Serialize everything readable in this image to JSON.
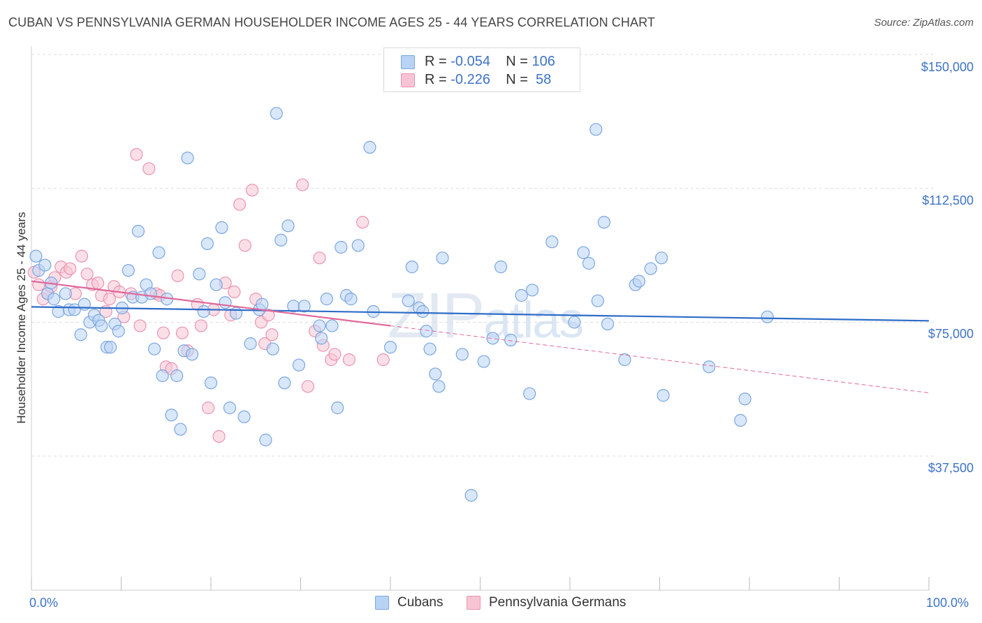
{
  "title": "CUBAN VS PENNSYLVANIA GERMAN HOUSEHOLDER INCOME AGES 25 - 44 YEARS CORRELATION CHART",
  "source": "Source: ZipAtlas.com",
  "watermark": {
    "zip": "ZIP",
    "atlas": "atlas"
  },
  "colors": {
    "cubans_fill": "#b9d3f5",
    "cubans_stroke": "#7aa6e0",
    "cubans_line": "#2d6cc8",
    "pa_fill": "#f8c4d4",
    "pa_stroke": "#eb94b0",
    "pa_line": "#e0679a",
    "tick_label": "#3d72c8",
    "grid": "#dddddd"
  },
  "legend_stats": [
    {
      "r_label": "R = ",
      "r_value": "-0.054",
      "n_label": "N = ",
      "n_value": "106"
    },
    {
      "r_label": "R = ",
      "r_value": "-0.226",
      "n_label": "N = ",
      "n_value": " 58"
    }
  ],
  "chart_data": {
    "type": "scatter",
    "title": "CUBAN VS PENNSYLVANIA GERMAN HOUSEHOLDER INCOME AGES 25 - 44 YEARS CORRELATION CHART",
    "xlabel": "",
    "ylabel": "Householder Income Ages 25 - 44 years",
    "xlim": [
      0,
      100
    ],
    "ylim": [
      15000,
      155000
    ],
    "x_tick_labels": [
      "0.0%",
      "100.0%"
    ],
    "y_ticks": [
      37500,
      75000,
      112500,
      150000
    ],
    "y_tick_labels": [
      "$37,500",
      "$75,000",
      "$112,500",
      "$150,000"
    ],
    "grid": "horizontal dashed",
    "legend_position": "top-center and bottom",
    "series": [
      {
        "name": "Cubans",
        "r": -0.054,
        "n": 106,
        "trend": {
          "x": [
            0,
            100
          ],
          "y": [
            79300,
            75400
          ]
        },
        "points": [
          [
            0.5,
            93500
          ],
          [
            0.8,
            89500
          ],
          [
            1.5,
            91000
          ],
          [
            1.8,
            83000
          ],
          [
            2.2,
            86000
          ],
          [
            2.5,
            81500
          ],
          [
            3.0,
            78000
          ],
          [
            3.8,
            83000
          ],
          [
            4.2,
            78500
          ],
          [
            4.8,
            78500
          ],
          [
            5.5,
            71500
          ],
          [
            5.9,
            80000
          ],
          [
            6.5,
            75000
          ],
          [
            7.0,
            77000
          ],
          [
            7.5,
            75500
          ],
          [
            7.8,
            74000
          ],
          [
            8.4,
            68000
          ],
          [
            8.8,
            68000
          ],
          [
            9.3,
            74500
          ],
          [
            9.7,
            72500
          ],
          [
            10.1,
            79000
          ],
          [
            10.8,
            89500
          ],
          [
            11.3,
            82000
          ],
          [
            11.9,
            100500
          ],
          [
            12.3,
            82000
          ],
          [
            12.8,
            85500
          ],
          [
            13.3,
            83000
          ],
          [
            13.7,
            67500
          ],
          [
            14.2,
            94500
          ],
          [
            14.6,
            60000
          ],
          [
            15.1,
            81500
          ],
          [
            15.6,
            49000
          ],
          [
            16.2,
            60000
          ],
          [
            16.6,
            45000
          ],
          [
            17.0,
            67000
          ],
          [
            17.4,
            121000
          ],
          [
            17.9,
            66000
          ],
          [
            18.7,
            88500
          ],
          [
            19.2,
            78000
          ],
          [
            19.6,
            97000
          ],
          [
            20.0,
            58000
          ],
          [
            20.6,
            85500
          ],
          [
            21.2,
            101500
          ],
          [
            21.6,
            80500
          ],
          [
            22.1,
            51000
          ],
          [
            22.8,
            77500
          ],
          [
            23.7,
            48500
          ],
          [
            24.4,
            69000
          ],
          [
            25.4,
            78500
          ],
          [
            25.7,
            80000
          ],
          [
            26.1,
            42000
          ],
          [
            26.9,
            67500
          ],
          [
            27.3,
            133500
          ],
          [
            27.8,
            98000
          ],
          [
            28.2,
            58000
          ],
          [
            28.6,
            102000
          ],
          [
            29.2,
            79500
          ],
          [
            29.8,
            63000
          ],
          [
            30.4,
            79500
          ],
          [
            32.1,
            74000
          ],
          [
            32.3,
            70500
          ],
          [
            32.9,
            81500
          ],
          [
            33.5,
            74000
          ],
          [
            34.1,
            51000
          ],
          [
            34.5,
            96000
          ],
          [
            35.1,
            82500
          ],
          [
            35.6,
            81500
          ],
          [
            36.4,
            96500
          ],
          [
            37.7,
            124000
          ],
          [
            38.1,
            78000
          ],
          [
            40.0,
            68000
          ],
          [
            42.0,
            81000
          ],
          [
            42.4,
            90500
          ],
          [
            43.2,
            79000
          ],
          [
            43.6,
            78000
          ],
          [
            44.0,
            72500
          ],
          [
            44.4,
            67500
          ],
          [
            45.0,
            60500
          ],
          [
            45.4,
            57000
          ],
          [
            45.8,
            93000
          ],
          [
            48.0,
            66000
          ],
          [
            50.4,
            64000
          ],
          [
            51.4,
            70500
          ],
          [
            52.3,
            90500
          ],
          [
            53.4,
            70000
          ],
          [
            54.6,
            82500
          ],
          [
            55.5,
            55000
          ],
          [
            55.8,
            84000
          ],
          [
            58.0,
            97500
          ],
          [
            60.5,
            75000
          ],
          [
            61.5,
            94500
          ],
          [
            62.1,
            91500
          ],
          [
            62.9,
            129000
          ],
          [
            63.1,
            81000
          ],
          [
            63.8,
            103000
          ],
          [
            64.2,
            74500
          ],
          [
            66.1,
            64500
          ],
          [
            67.3,
            85500
          ],
          [
            67.7,
            86500
          ],
          [
            69.0,
            90000
          ],
          [
            70.2,
            93000
          ],
          [
            70.4,
            54500
          ],
          [
            75.5,
            62500
          ],
          [
            79.0,
            47500
          ],
          [
            79.5,
            53500
          ],
          [
            82.0,
            76500
          ],
          [
            49.0,
            26500
          ]
        ]
      },
      {
        "name": "Pennsylvania Germans",
        "r": -0.226,
        "n": 58,
        "trend": {
          "x": [
            0,
            40
          ],
          "y": [
            86500,
            74000
          ]
        },
        "trend_extrapolated": {
          "x": [
            40,
            100
          ],
          "y": [
            74000,
            55200
          ]
        },
        "points": [
          [
            0.3,
            89000
          ],
          [
            0.8,
            85500
          ],
          [
            1.3,
            81500
          ],
          [
            1.8,
            83000
          ],
          [
            2.2,
            85000
          ],
          [
            2.6,
            87500
          ],
          [
            3.3,
            90500
          ],
          [
            3.9,
            89000
          ],
          [
            4.3,
            90000
          ],
          [
            4.9,
            83000
          ],
          [
            5.6,
            93500
          ],
          [
            6.2,
            88500
          ],
          [
            6.8,
            85500
          ],
          [
            7.4,
            86000
          ],
          [
            7.8,
            82500
          ],
          [
            8.3,
            78000
          ],
          [
            8.7,
            81500
          ],
          [
            9.2,
            85000
          ],
          [
            9.8,
            83500
          ],
          [
            10.3,
            76500
          ],
          [
            11.1,
            83000
          ],
          [
            11.7,
            122000
          ],
          [
            12.1,
            74000
          ],
          [
            13.1,
            118000
          ],
          [
            13.9,
            83000
          ],
          [
            14.3,
            82500
          ],
          [
            14.7,
            72000
          ],
          [
            15.0,
            62500
          ],
          [
            15.6,
            62000
          ],
          [
            16.3,
            88000
          ],
          [
            16.8,
            72000
          ],
          [
            17.4,
            67000
          ],
          [
            18.5,
            80000
          ],
          [
            18.9,
            74000
          ],
          [
            19.7,
            51000
          ],
          [
            20.3,
            78500
          ],
          [
            20.9,
            43000
          ],
          [
            21.6,
            86000
          ],
          [
            22.2,
            77000
          ],
          [
            22.6,
            83500
          ],
          [
            23.2,
            108000
          ],
          [
            23.8,
            96500
          ],
          [
            24.6,
            112000
          ],
          [
            25.0,
            81500
          ],
          [
            25.6,
            75000
          ],
          [
            26.0,
            69000
          ],
          [
            26.4,
            77000
          ],
          [
            26.8,
            71500
          ],
          [
            30.2,
            113500
          ],
          [
            30.8,
            57000
          ],
          [
            31.6,
            72500
          ],
          [
            32.1,
            93000
          ],
          [
            32.5,
            68500
          ],
          [
            33.4,
            64500
          ],
          [
            33.8,
            66000
          ],
          [
            35.4,
            64500
          ],
          [
            36.9,
            103000
          ],
          [
            39.2,
            64500
          ]
        ]
      }
    ]
  }
}
